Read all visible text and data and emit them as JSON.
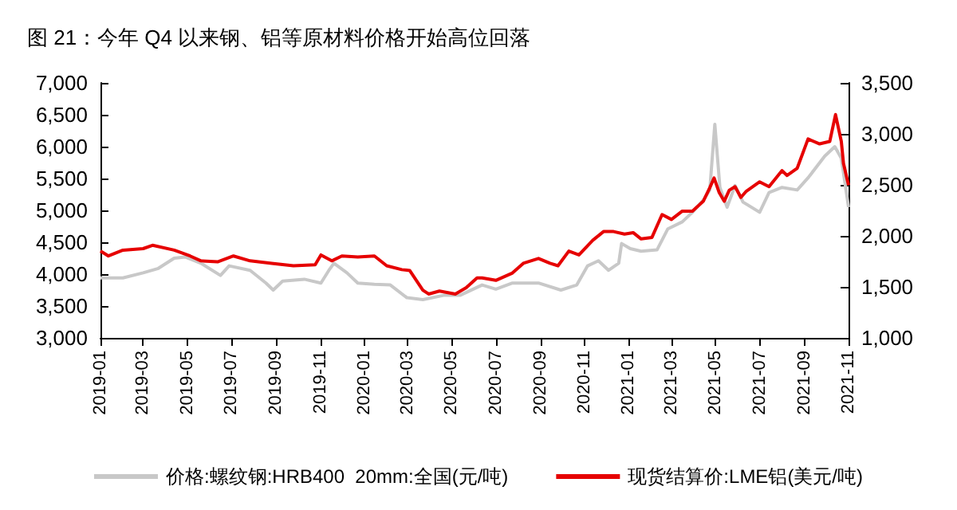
{
  "chart_data": {
    "type": "line",
    "title": "图 21：今年 Q4 以来钢、铝等原材料价格开始高位回落",
    "xlim": [
      "2019-01-01",
      "2021-11-01"
    ],
    "xticks": [
      "2019-01",
      "2019-03",
      "2019-05",
      "2019-07",
      "2019-09",
      "2019-11",
      "2020-01",
      "2020-03",
      "2020-05",
      "2020-07",
      "2020-09",
      "2020-11",
      "2021-01",
      "2021-03",
      "2021-05",
      "2021-07",
      "2021-09",
      "2021-11"
    ],
    "ylim": [
      3000,
      7000
    ],
    "yticks": [
      {
        "value": 3000,
        "label": "3,000"
      },
      {
        "value": 3500,
        "label": "3,500"
      },
      {
        "value": 4000,
        "label": "4,000"
      },
      {
        "value": 4500,
        "label": "4,500"
      },
      {
        "value": 5000,
        "label": "5,000"
      },
      {
        "value": 5500,
        "label": "5,500"
      },
      {
        "value": 6000,
        "label": "6,000"
      },
      {
        "value": 6500,
        "label": "6,500"
      },
      {
        "value": 7000,
        "label": "7,000"
      }
    ],
    "y2lim": [
      1000,
      3500
    ],
    "y2ticks": [
      {
        "value": 1000,
        "label": "1,000"
      },
      {
        "value": 1500,
        "label": "1,500"
      },
      {
        "value": 2000,
        "label": "2,000"
      },
      {
        "value": 2500,
        "label": "2,500"
      },
      {
        "value": 3000,
        "label": "3,000"
      },
      {
        "value": 3500,
        "label": "3,500"
      }
    ],
    "grid": false,
    "legend": "bottom",
    "marker": "none",
    "line_style": "solid",
    "series": [
      {
        "name": "价格:螺纹钢:HRB400  20mm:全国(元/吨)",
        "color": "#c8c8c8",
        "x": [
          "2019-01-01",
          "2019-02-01",
          "2019-03-01",
          "2019-03-22",
          "2019-04-13",
          "2019-04-28",
          "2019-05-20",
          "2019-06-16",
          "2019-06-28",
          "2019-07-27",
          "2019-08-18",
          "2019-08-28",
          "2019-09-10",
          "2019-10-10",
          "2019-11-02",
          "2019-11-13",
          "2019-11-20",
          "2019-12-08",
          "2019-12-23",
          "2020-01-15",
          "2020-02-06",
          "2020-02-29",
          "2020-03-22",
          "2020-04-21",
          "2020-05-13",
          "2020-06-12",
          "2020-07-01",
          "2020-07-24",
          "2020-08-29",
          "2020-09-29",
          "2020-10-21",
          "2020-11-05",
          "2020-11-20",
          "2020-12-04",
          "2020-12-18",
          "2020-12-22",
          "2021-01-03",
          "2021-01-18",
          "2021-02-09",
          "2021-02-24",
          "2021-03-16",
          "2021-03-30",
          "2021-04-14",
          "2021-04-23",
          "2021-04-30",
          "2021-05-07",
          "2021-05-17",
          "2021-05-28",
          "2021-06-08",
          "2021-07-01",
          "2021-07-14",
          "2021-08-01",
          "2021-08-22",
          "2021-09-06",
          "2021-09-29",
          "2021-10-13",
          "2021-10-22",
          "2021-11-01"
        ],
        "values": [
          3940,
          3940,
          4020,
          4090,
          4250,
          4270,
          4170,
          3980,
          4130,
          4060,
          3860,
          3750,
          3890,
          3920,
          3860,
          4060,
          4170,
          4020,
          3860,
          3840,
          3830,
          3630,
          3600,
          3670,
          3670,
          3830,
          3765,
          3860,
          3860,
          3750,
          3830,
          4130,
          4210,
          4060,
          4170,
          4480,
          4400,
          4360,
          4380,
          4710,
          4820,
          4970,
          5160,
          5320,
          6350,
          5360,
          5050,
          5390,
          5130,
          4970,
          5280,
          5360,
          5320,
          5510,
          5850,
          6000,
          5820,
          5050
        ]
      },
      {
        "name": "现货结算价:LME铝(美元/吨)",
        "color": "#e60000",
        "axis": "y2",
        "x": [
          "2019-01-01",
          "2019-01-12",
          "2019-02-01",
          "2019-03-01",
          "2019-03-14",
          "2019-04-13",
          "2019-05-05",
          "2019-05-20",
          "2019-06-12",
          "2019-07-04",
          "2019-07-27",
          "2019-08-26",
          "2019-09-25",
          "2019-10-25",
          "2019-11-02",
          "2019-11-17",
          "2019-12-01",
          "2019-12-23",
          "2020-01-15",
          "2020-02-01",
          "2020-02-22",
          "2020-03-04",
          "2020-03-22",
          "2020-03-30",
          "2020-04-14",
          "2020-05-06",
          "2020-05-21",
          "2020-06-05",
          "2020-06-12",
          "2020-07-01",
          "2020-07-24",
          "2020-08-08",
          "2020-08-29",
          "2020-09-14",
          "2020-09-25",
          "2020-10-10",
          "2020-10-24",
          "2020-11-12",
          "2020-11-27",
          "2020-12-11",
          "2020-12-26",
          "2021-01-07",
          "2021-01-18",
          "2021-02-02",
          "2021-02-16",
          "2021-03-01",
          "2021-03-16",
          "2021-03-30",
          "2021-04-14",
          "2021-04-23",
          "2021-04-29",
          "2021-05-06",
          "2021-05-13",
          "2021-05-20",
          "2021-05-28",
          "2021-06-05",
          "2021-06-12",
          "2021-07-01",
          "2021-07-14",
          "2021-08-01",
          "2021-08-08",
          "2021-08-22",
          "2021-09-06",
          "2021-09-22",
          "2021-10-06",
          "2021-10-14",
          "2021-10-22",
          "2021-10-25",
          "2021-11-01"
        ],
        "values": [
          1851,
          1803,
          1860,
          1875,
          1908,
          1860,
          1803,
          1755,
          1746,
          1803,
          1755,
          1731,
          1707,
          1717,
          1813,
          1755,
          1803,
          1793,
          1803,
          1707,
          1669,
          1660,
          1468,
          1430,
          1459,
          1430,
          1492,
          1588,
          1588,
          1564,
          1636,
          1731,
          1779,
          1731,
          1707,
          1851,
          1813,
          1956,
          2042,
          2042,
          2018,
          2032,
          1970,
          1985,
          2209,
          2161,
          2243,
          2243,
          2339,
          2472,
          2568,
          2425,
          2339,
          2448,
          2482,
          2377,
          2434,
          2530,
          2482,
          2640,
          2592,
          2664,
          2950,
          2902,
          2926,
          3189,
          2926,
          2711,
          2496
        ]
      }
    ]
  }
}
